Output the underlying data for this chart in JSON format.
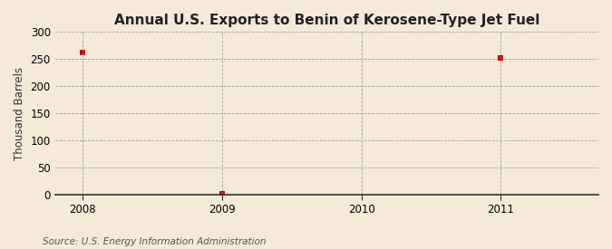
{
  "title": "Annual U.S. Exports to Benin of Kerosene-Type Jet Fuel",
  "ylabel": "Thousand Barrels",
  "source_text": "Source: U.S. Energy Information Administration",
  "x_values": [
    2008,
    2009,
    2010,
    2011
  ],
  "y_values": [
    262,
    1,
    null,
    252
  ],
  "marker_color": "#cc0000",
  "marker_size": 4,
  "xlim": [
    2007.8,
    2011.7
  ],
  "ylim": [
    0,
    300
  ],
  "yticks": [
    0,
    50,
    100,
    150,
    200,
    250,
    300
  ],
  "xticks": [
    2008,
    2009,
    2010,
    2011
  ],
  "background_color": "#f5ead8",
  "plot_bg_color": "#f5ead8",
  "grid_color": "#999999",
  "title_fontsize": 11,
  "label_fontsize": 8.5,
  "tick_fontsize": 8.5,
  "source_fontsize": 7.5
}
